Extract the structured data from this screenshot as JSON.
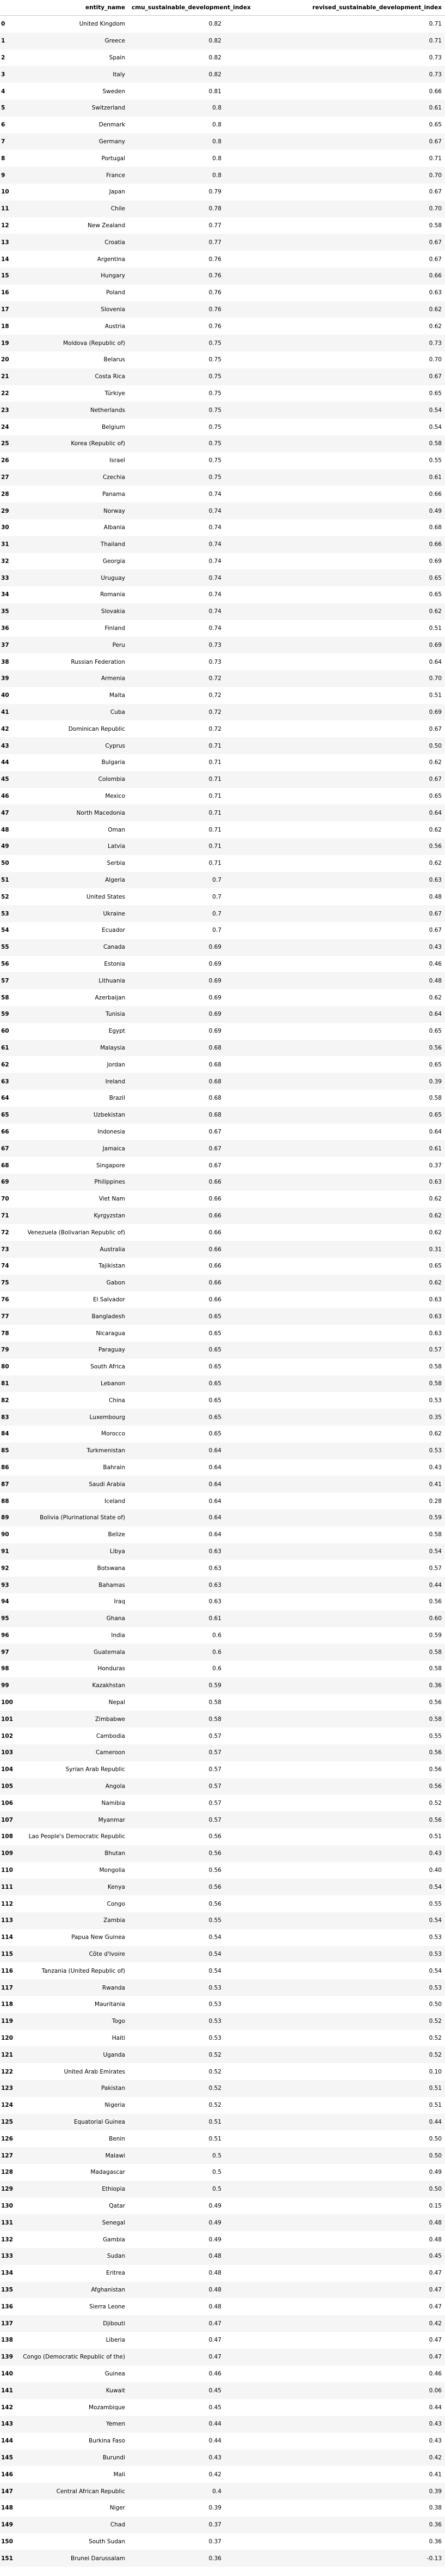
{
  "table": {
    "columns": [
      "",
      "entity_name",
      "cmu_sustainable_development_index",
      "revised_sustainable_development_index"
    ],
    "rows": [
      [
        "0",
        "United Kingdom",
        "0.82",
        "0.71"
      ],
      [
        "1",
        "Greece",
        "0.82",
        "0.71"
      ],
      [
        "2",
        "Spain",
        "0.82",
        "0.73"
      ],
      [
        "3",
        "Italy",
        "0.82",
        "0.73"
      ],
      [
        "4",
        "Sweden",
        "0.81",
        "0.66"
      ],
      [
        "5",
        "Switzerland",
        "0.8",
        "0.61"
      ],
      [
        "6",
        "Denmark",
        "0.8",
        "0.65"
      ],
      [
        "7",
        "Germany",
        "0.8",
        "0.67"
      ],
      [
        "8",
        "Portugal",
        "0.8",
        "0.71"
      ],
      [
        "9",
        "France",
        "0.8",
        "0.70"
      ],
      [
        "10",
        "Japan",
        "0.79",
        "0.67"
      ],
      [
        "11",
        "Chile",
        "0.78",
        "0.70"
      ],
      [
        "12",
        "New Zealand",
        "0.77",
        "0.58"
      ],
      [
        "13",
        "Croatia",
        "0.77",
        "0.67"
      ],
      [
        "14",
        "Argentina",
        "0.76",
        "0.67"
      ],
      [
        "15",
        "Hungary",
        "0.76",
        "0.66"
      ],
      [
        "16",
        "Poland",
        "0.76",
        "0.63"
      ],
      [
        "17",
        "Slovenia",
        "0.76",
        "0.62"
      ],
      [
        "18",
        "Austria",
        "0.76",
        "0.62"
      ],
      [
        "19",
        "Moldova (Republic of)",
        "0.75",
        "0.73"
      ],
      [
        "20",
        "Belarus",
        "0.75",
        "0.70"
      ],
      [
        "21",
        "Costa Rica",
        "0.75",
        "0.67"
      ],
      [
        "22",
        "Türkiye",
        "0.75",
        "0.65"
      ],
      [
        "23",
        "Netherlands",
        "0.75",
        "0.54"
      ],
      [
        "24",
        "Belgium",
        "0.75",
        "0.54"
      ],
      [
        "25",
        "Korea (Republic of)",
        "0.75",
        "0.58"
      ],
      [
        "26",
        "Israel",
        "0.75",
        "0.55"
      ],
      [
        "27",
        "Czechia",
        "0.75",
        "0.61"
      ],
      [
        "28",
        "Panama",
        "0.74",
        "0.66"
      ],
      [
        "29",
        "Norway",
        "0.74",
        "0.49"
      ],
      [
        "30",
        "Albania",
        "0.74",
        "0.68"
      ],
      [
        "31",
        "Thailand",
        "0.74",
        "0.66"
      ],
      [
        "32",
        "Georgia",
        "0.74",
        "0.69"
      ],
      [
        "33",
        "Uruguay",
        "0.74",
        "0.65"
      ],
      [
        "34",
        "Romania",
        "0.74",
        "0.65"
      ],
      [
        "35",
        "Slovakia",
        "0.74",
        "0.62"
      ],
      [
        "36",
        "Finland",
        "0.74",
        "0.51"
      ],
      [
        "37",
        "Peru",
        "0.73",
        "0.69"
      ],
      [
        "38",
        "Russian Federation",
        "0.73",
        "0.64"
      ],
      [
        "39",
        "Armenia",
        "0.72",
        "0.70"
      ],
      [
        "40",
        "Malta",
        "0.72",
        "0.51"
      ],
      [
        "41",
        "Cuba",
        "0.72",
        "0.69"
      ],
      [
        "42",
        "Dominican Republic",
        "0.72",
        "0.67"
      ],
      [
        "43",
        "Cyprus",
        "0.71",
        "0.50"
      ],
      [
        "44",
        "Bulgaria",
        "0.71",
        "0.62"
      ],
      [
        "45",
        "Colombia",
        "0.71",
        "0.67"
      ],
      [
        "46",
        "Mexico",
        "0.71",
        "0.65"
      ],
      [
        "47",
        "North Macedonia",
        "0.71",
        "0.64"
      ],
      [
        "48",
        "Oman",
        "0.71",
        "0.62"
      ],
      [
        "49",
        "Latvia",
        "0.71",
        "0.56"
      ],
      [
        "50",
        "Serbia",
        "0.71",
        "0.62"
      ],
      [
        "51",
        "Algeria",
        "0.7",
        "0.63"
      ],
      [
        "52",
        "United States",
        "0.7",
        "0.48"
      ],
      [
        "53",
        "Ukraine",
        "0.7",
        "0.67"
      ],
      [
        "54",
        "Ecuador",
        "0.7",
        "0.67"
      ],
      [
        "55",
        "Canada",
        "0.69",
        "0.43"
      ],
      [
        "56",
        "Estonia",
        "0.69",
        "0.46"
      ],
      [
        "57",
        "Lithuania",
        "0.69",
        "0.48"
      ],
      [
        "58",
        "Azerbaijan",
        "0.69",
        "0.62"
      ],
      [
        "59",
        "Tunisia",
        "0.69",
        "0.64"
      ],
      [
        "60",
        "Egypt",
        "0.69",
        "0.65"
      ],
      [
        "61",
        "Malaysia",
        "0.68",
        "0.56"
      ],
      [
        "62",
        "Jordan",
        "0.68",
        "0.65"
      ],
      [
        "63",
        "Ireland",
        "0.68",
        "0.39"
      ],
      [
        "64",
        "Brazil",
        "0.68",
        "0.58"
      ],
      [
        "65",
        "Uzbekistan",
        "0.68",
        "0.65"
      ],
      [
        "66",
        "Indonesia",
        "0.67",
        "0.64"
      ],
      [
        "67",
        "Jamaica",
        "0.67",
        "0.61"
      ],
      [
        "68",
        "Singapore",
        "0.67",
        "0.37"
      ],
      [
        "69",
        "Philippines",
        "0.66",
        "0.63"
      ],
      [
        "70",
        "Viet Nam",
        "0.66",
        "0.62"
      ],
      [
        "71",
        "Kyrgyzstan",
        "0.66",
        "0.62"
      ],
      [
        "72",
        "Venezuela (Bolivarian Republic of)",
        "0.66",
        "0.62"
      ],
      [
        "73",
        "Australia",
        "0.66",
        "0.31"
      ],
      [
        "74",
        "Tajikistan",
        "0.66",
        "0.65"
      ],
      [
        "75",
        "Gabon",
        "0.66",
        "0.62"
      ],
      [
        "76",
        "El Salvador",
        "0.66",
        "0.63"
      ],
      [
        "77",
        "Bangladesh",
        "0.65",
        "0.63"
      ],
      [
        "78",
        "Nicaragua",
        "0.65",
        "0.63"
      ],
      [
        "79",
        "Paraguay",
        "0.65",
        "0.57"
      ],
      [
        "80",
        "South Africa",
        "0.65",
        "0.58"
      ],
      [
        "81",
        "Lebanon",
        "0.65",
        "0.58"
      ],
      [
        "82",
        "China",
        "0.65",
        "0.53"
      ],
      [
        "83",
        "Luxembourg",
        "0.65",
        "0.35"
      ],
      [
        "84",
        "Morocco",
        "0.65",
        "0.62"
      ],
      [
        "85",
        "Turkmenistan",
        "0.64",
        "0.53"
      ],
      [
        "86",
        "Bahrain",
        "0.64",
        "0.43"
      ],
      [
        "87",
        "Saudi Arabia",
        "0.64",
        "0.41"
      ],
      [
        "88",
        "Iceland",
        "0.64",
        "0.28"
      ],
      [
        "89",
        "Bolivia (Plurinational State of)",
        "0.64",
        "0.59"
      ],
      [
        "90",
        "Belize",
        "0.64",
        "0.58"
      ],
      [
        "91",
        "Libya",
        "0.63",
        "0.54"
      ],
      [
        "92",
        "Botswana",
        "0.63",
        "0.57"
      ],
      [
        "93",
        "Bahamas",
        "0.63",
        "0.44"
      ],
      [
        "94",
        "Iraq",
        "0.63",
        "0.56"
      ],
      [
        "95",
        "Ghana",
        "0.61",
        "0.60"
      ],
      [
        "96",
        "India",
        "0.6",
        "0.59"
      ],
      [
        "97",
        "Guatemala",
        "0.6",
        "0.58"
      ],
      [
        "98",
        "Honduras",
        "0.6",
        "0.58"
      ],
      [
        "99",
        "Kazakhstan",
        "0.59",
        "0.36"
      ],
      [
        "100",
        "Nepal",
        "0.58",
        "0.56"
      ],
      [
        "101",
        "Zimbabwe",
        "0.58",
        "0.58"
      ],
      [
        "102",
        "Cambodia",
        "0.57",
        "0.55"
      ],
      [
        "103",
        "Cameroon",
        "0.57",
        "0.56"
      ],
      [
        "104",
        "Syrian Arab Republic",
        "0.57",
        "0.56"
      ],
      [
        "105",
        "Angola",
        "0.57",
        "0.56"
      ],
      [
        "106",
        "Namibia",
        "0.57",
        "0.52"
      ],
      [
        "107",
        "Myanmar",
        "0.57",
        "0.56"
      ],
      [
        "108",
        "Lao People's Democratic Republic",
        "0.56",
        "0.51"
      ],
      [
        "109",
        "Bhutan",
        "0.56",
        "0.43"
      ],
      [
        "110",
        "Mongolia",
        "0.56",
        "0.40"
      ],
      [
        "111",
        "Kenya",
        "0.56",
        "0.54"
      ],
      [
        "112",
        "Congo",
        "0.56",
        "0.55"
      ],
      [
        "113",
        "Zambia",
        "0.55",
        "0.54"
      ],
      [
        "114",
        "Papua New Guinea",
        "0.54",
        "0.53"
      ],
      [
        "115",
        "Côte d'Ivoire",
        "0.54",
        "0.53"
      ],
      [
        "116",
        "Tanzania (United Republic of)",
        "0.54",
        "0.54"
      ],
      [
        "117",
        "Rwanda",
        "0.53",
        "0.53"
      ],
      [
        "118",
        "Mauritania",
        "0.53",
        "0.50"
      ],
      [
        "119",
        "Togo",
        "0.53",
        "0.52"
      ],
      [
        "120",
        "Haiti",
        "0.53",
        "0.52"
      ],
      [
        "121",
        "Uganda",
        "0.52",
        "0.52"
      ],
      [
        "122",
        "United Arab Emirates",
        "0.52",
        "0.10"
      ],
      [
        "123",
        "Pakistan",
        "0.52",
        "0.51"
      ],
      [
        "124",
        "Nigeria",
        "0.52",
        "0.51"
      ],
      [
        "125",
        "Equatorial Guinea",
        "0.51",
        "0.44"
      ],
      [
        "126",
        "Benin",
        "0.51",
        "0.50"
      ],
      [
        "127",
        "Malawi",
        "0.5",
        "0.50"
      ],
      [
        "128",
        "Madagascar",
        "0.5",
        "0.49"
      ],
      [
        "129",
        "Ethiopia",
        "0.5",
        "0.50"
      ],
      [
        "130",
        "Qatar",
        "0.49",
        "0.15"
      ],
      [
        "131",
        "Senegal",
        "0.49",
        "0.48"
      ],
      [
        "132",
        "Gambia",
        "0.49",
        "0.48"
      ],
      [
        "133",
        "Sudan",
        "0.48",
        "0.45"
      ],
      [
        "134",
        "Eritrea",
        "0.48",
        "0.47"
      ],
      [
        "135",
        "Afghanistan",
        "0.48",
        "0.47"
      ],
      [
        "136",
        "Sierra Leone",
        "0.48",
        "0.47"
      ],
      [
        "137",
        "Djibouti",
        "0.47",
        "0.42"
      ],
      [
        "138",
        "Liberia",
        "0.47",
        "0.47"
      ],
      [
        "139",
        "Congo (Democratic Republic of the)",
        "0.47",
        "0.47"
      ],
      [
        "140",
        "Guinea",
        "0.46",
        "0.46"
      ],
      [
        "141",
        "Kuwait",
        "0.45",
        "0.06"
      ],
      [
        "142",
        "Mozambique",
        "0.45",
        "0.44"
      ],
      [
        "143",
        "Yemen",
        "0.44",
        "0.43"
      ],
      [
        "144",
        "Burkina Faso",
        "0.44",
        "0.43"
      ],
      [
        "145",
        "Burundi",
        "0.43",
        "0.42"
      ],
      [
        "146",
        "Mali",
        "0.42",
        "0.41"
      ],
      [
        "147",
        "Central African Republic",
        "0.4",
        "0.39"
      ],
      [
        "148",
        "Niger",
        "0.39",
        "0.38"
      ],
      [
        "149",
        "Chad",
        "0.37",
        "0.36"
      ],
      [
        "150",
        "South Sudan",
        "0.37",
        "0.36"
      ],
      [
        "151",
        "Brunei Darussalam",
        "0.36",
        "-0.13"
      ]
    ]
  }
}
